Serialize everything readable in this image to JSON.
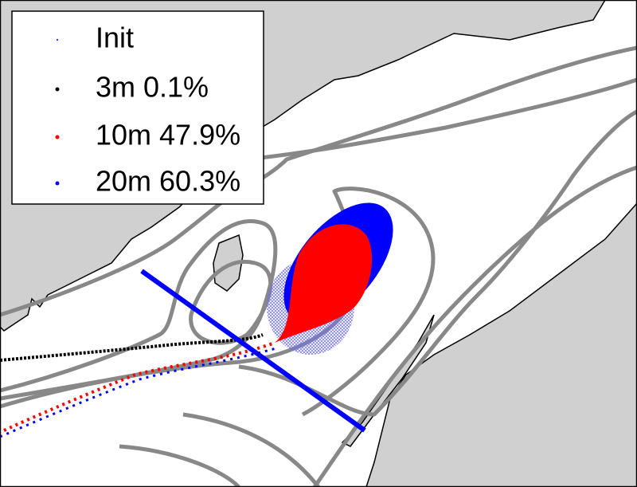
{
  "legend": {
    "entries": [
      {
        "label": "Init",
        "color": "#3b3bff"
      },
      {
        "label": "3m 0.1%",
        "color": "#000000"
      },
      {
        "label": "10m 47.9%",
        "color": "#ff0000"
      },
      {
        "label": "20m 60.3%",
        "color": "#0000ff"
      }
    ]
  }
}
